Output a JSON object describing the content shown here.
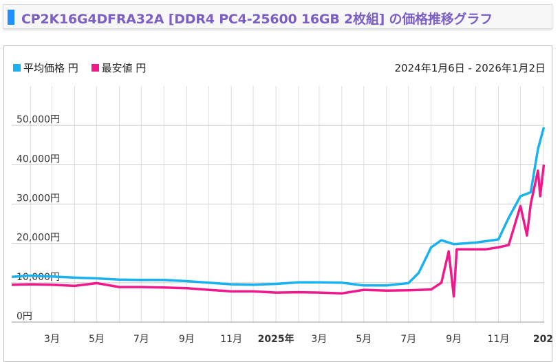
{
  "page": {
    "title": "CP2K16G4DFRA32A [DDR4 PC4-25600 16GB 2枚組] の価格推移グラフ",
    "title_color": "#7b5fc4",
    "accent_color": "#1e90ff"
  },
  "chart_data": {
    "type": "line",
    "date_range": "2024年1月6日 - 2026年1月2日",
    "x_unit": "months since 2024-01",
    "xlim": [
      0,
      23.9
    ],
    "ylim": [
      0,
      60000
    ],
    "grid": true,
    "legend_placement": "top-left",
    "y_ticks": [
      {
        "value": 0,
        "label": "0円"
      },
      {
        "value": 10000,
        "label": "10,000円"
      },
      {
        "value": 20000,
        "label": "20,000円"
      },
      {
        "value": 30000,
        "label": "30,000円"
      },
      {
        "value": 40000,
        "label": "40,000円"
      },
      {
        "value": 50000,
        "label": "50,000円"
      }
    ],
    "x_ticks": [
      {
        "label": "3月",
        "bold": false
      },
      {
        "label": "5月",
        "bold": false
      },
      {
        "label": "7月",
        "bold": false
      },
      {
        "label": "9月",
        "bold": false
      },
      {
        "label": "11月",
        "bold": false
      },
      {
        "label": "2025年",
        "bold": true
      },
      {
        "label": "3月",
        "bold": false
      },
      {
        "label": "5月",
        "bold": false
      },
      {
        "label": "7月",
        "bold": false
      },
      {
        "label": "9月",
        "bold": false
      },
      {
        "label": "11月",
        "bold": false
      },
      {
        "label": "202",
        "bold": true
      }
    ],
    "series": [
      {
        "name": "平均価格 円",
        "color": "#1ab2ee",
        "points": [
          [
            "2024-01-06",
            11500
          ],
          [
            "2024-02-01",
            11800
          ],
          [
            "2024-03-01",
            11600
          ],
          [
            "2024-04-01",
            11300
          ],
          [
            "2024-05-01",
            11100
          ],
          [
            "2024-06-01",
            10800
          ],
          [
            "2024-07-01",
            10700
          ],
          [
            "2024-08-01",
            10700
          ],
          [
            "2024-09-01",
            10400
          ],
          [
            "2024-10-01",
            10000
          ],
          [
            "2024-11-01",
            9600
          ],
          [
            "2024-12-01",
            9500
          ],
          [
            "2025-01-01",
            9700
          ],
          [
            "2025-02-01",
            10100
          ],
          [
            "2025-03-01",
            10100
          ],
          [
            "2025-04-01",
            10000
          ],
          [
            "2025-05-01",
            9300
          ],
          [
            "2025-06-01",
            9300
          ],
          [
            "2025-07-01",
            9900
          ],
          [
            "2025-07-15",
            12500
          ],
          [
            "2025-08-01",
            19000
          ],
          [
            "2025-08-15",
            20800
          ],
          [
            "2025-09-01",
            19800
          ],
          [
            "2025-10-01",
            20200
          ],
          [
            "2025-11-01",
            21000
          ],
          [
            "2025-11-15",
            26500
          ],
          [
            "2025-12-01",
            32000
          ],
          [
            "2025-12-15",
            33000
          ],
          [
            "2025-12-25",
            44000
          ],
          [
            "2026-01-02",
            49500
          ]
        ]
      },
      {
        "name": "最安値 円",
        "color": "#f0198c",
        "points": [
          [
            "2024-01-06",
            9500
          ],
          [
            "2024-02-01",
            9600
          ],
          [
            "2024-03-01",
            9500
          ],
          [
            "2024-04-01",
            9200
          ],
          [
            "2024-05-01",
            9900
          ],
          [
            "2024-06-01",
            8900
          ],
          [
            "2024-07-01",
            8900
          ],
          [
            "2024-08-01",
            8800
          ],
          [
            "2024-09-01",
            8600
          ],
          [
            "2024-10-01",
            8200
          ],
          [
            "2024-11-01",
            7800
          ],
          [
            "2024-12-01",
            7800
          ],
          [
            "2025-01-01",
            7500
          ],
          [
            "2025-02-01",
            7600
          ],
          [
            "2025-03-01",
            7500
          ],
          [
            "2025-04-01",
            7300
          ],
          [
            "2025-05-01",
            8200
          ],
          [
            "2025-06-01",
            8000
          ],
          [
            "2025-07-01",
            8100
          ],
          [
            "2025-08-01",
            8300
          ],
          [
            "2025-08-15",
            10000
          ],
          [
            "2025-08-25",
            18000
          ],
          [
            "2025-09-01",
            6500
          ],
          [
            "2025-09-05",
            18500
          ],
          [
            "2025-09-15",
            18500
          ],
          [
            "2025-10-15",
            18500
          ],
          [
            "2025-11-01",
            19000
          ],
          [
            "2025-11-15",
            19600
          ],
          [
            "2025-12-01",
            29500
          ],
          [
            "2025-12-10",
            22000
          ],
          [
            "2025-12-15",
            30000
          ],
          [
            "2025-12-25",
            38500
          ],
          [
            "2025-12-28",
            32000
          ],
          [
            "2026-01-02",
            40000
          ]
        ]
      }
    ]
  }
}
